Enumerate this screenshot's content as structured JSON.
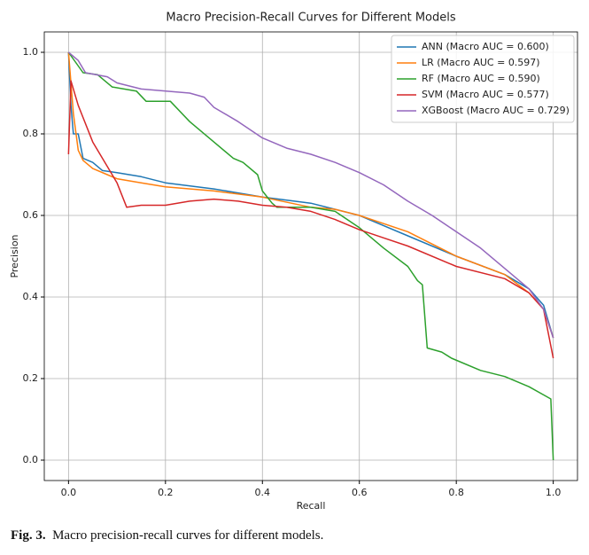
{
  "chart_data": {
    "type": "line",
    "title": "Macro Precision-Recall Curves for Different Models",
    "x_label": "Recall",
    "y_label": "Precision",
    "xlim": [
      -0.05,
      1.05
    ],
    "ylim": [
      -0.05,
      1.05
    ],
    "xticks": [
      {
        "value": 0,
        "label": "0.0"
      },
      0.2,
      0.4,
      0.6,
      0.8,
      {
        "value": 1,
        "label": "1.0"
      }
    ],
    "yticks": [
      {
        "value": 0,
        "label": "0.0"
      },
      0.2,
      0.4,
      0.6,
      0.8,
      {
        "value": 1,
        "label": "1.0"
      }
    ],
    "grid": true,
    "legend": "upper-right",
    "series": [
      {
        "name": "ANN (Macro AUC = 0.600)",
        "color": "#1f77b4",
        "x": [
          0,
          0.005,
          0.01,
          0.02,
          0.03,
          0.05,
          0.07,
          0.1,
          0.15,
          0.2,
          0.3,
          0.4,
          0.5,
          0.55,
          0.6,
          0.7,
          0.8,
          0.9,
          0.95,
          0.98,
          1.0
        ],
        "values": [
          1.0,
          0.87,
          0.8,
          0.8,
          0.74,
          0.73,
          0.71,
          0.705,
          0.695,
          0.68,
          0.665,
          0.645,
          0.63,
          0.615,
          0.6,
          0.55,
          0.5,
          0.455,
          0.42,
          0.38,
          0.3
        ]
      },
      {
        "name": "LR (Macro AUC = 0.597)",
        "color": "#ff7f0e",
        "x": [
          0,
          0.01,
          0.02,
          0.03,
          0.05,
          0.08,
          0.1,
          0.15,
          0.2,
          0.3,
          0.4,
          0.5,
          0.55,
          0.6,
          0.65,
          0.7,
          0.8,
          0.9,
          0.95,
          0.98,
          1.0
        ],
        "values": [
          1.0,
          0.85,
          0.76,
          0.735,
          0.715,
          0.7,
          0.69,
          0.68,
          0.67,
          0.66,
          0.645,
          0.62,
          0.615,
          0.6,
          0.58,
          0.56,
          0.5,
          0.455,
          0.41,
          0.37,
          0.3
        ]
      },
      {
        "name": "RF (Macro AUC = 0.590)",
        "color": "#2ca02c",
        "x": [
          0,
          0.03,
          0.06,
          0.09,
          0.14,
          0.16,
          0.21,
          0.25,
          0.3,
          0.34,
          0.36,
          0.39,
          0.4,
          0.42,
          0.43,
          0.5,
          0.55,
          0.6,
          0.65,
          0.7,
          0.72,
          0.73,
          0.74,
          0.77,
          0.79,
          0.85,
          0.9,
          0.95,
          0.98,
          0.995,
          1.0
        ],
        "values": [
          1.0,
          0.95,
          0.945,
          0.915,
          0.905,
          0.88,
          0.88,
          0.83,
          0.78,
          0.74,
          0.73,
          0.7,
          0.66,
          0.63,
          0.62,
          0.62,
          0.61,
          0.57,
          0.52,
          0.475,
          0.44,
          0.43,
          0.275,
          0.265,
          0.25,
          0.22,
          0.205,
          0.18,
          0.16,
          0.15,
          0.0
        ]
      },
      {
        "name": "SVM (Macro AUC = 0.577)",
        "color": "#d62728",
        "x": [
          0,
          0.005,
          0.02,
          0.05,
          0.08,
          0.1,
          0.12,
          0.15,
          0.2,
          0.25,
          0.3,
          0.35,
          0.4,
          0.45,
          0.5,
          0.55,
          0.6,
          0.65,
          0.7,
          0.8,
          0.9,
          0.95,
          0.98,
          1.0
        ],
        "values": [
          0.75,
          0.93,
          0.87,
          0.78,
          0.72,
          0.68,
          0.62,
          0.625,
          0.625,
          0.635,
          0.64,
          0.635,
          0.625,
          0.62,
          0.61,
          0.59,
          0.565,
          0.545,
          0.525,
          0.475,
          0.445,
          0.41,
          0.37,
          0.25
        ]
      },
      {
        "name": "XGBoost (Macro AUC = 0.729)",
        "color": "#9467bd",
        "x": [
          0,
          0.02,
          0.035,
          0.08,
          0.1,
          0.15,
          0.25,
          0.28,
          0.3,
          0.35,
          0.4,
          0.45,
          0.5,
          0.55,
          0.6,
          0.65,
          0.7,
          0.75,
          0.8,
          0.85,
          0.9,
          0.95,
          0.98,
          1.0
        ],
        "values": [
          1.0,
          0.98,
          0.95,
          0.94,
          0.925,
          0.91,
          0.9,
          0.89,
          0.865,
          0.83,
          0.79,
          0.765,
          0.75,
          0.73,
          0.705,
          0.675,
          0.635,
          0.6,
          0.56,
          0.52,
          0.47,
          0.42,
          0.37,
          0.3
        ]
      }
    ]
  },
  "caption": {
    "label": "Fig. 3.",
    "text": "Macro precision-recall curves for different models."
  }
}
